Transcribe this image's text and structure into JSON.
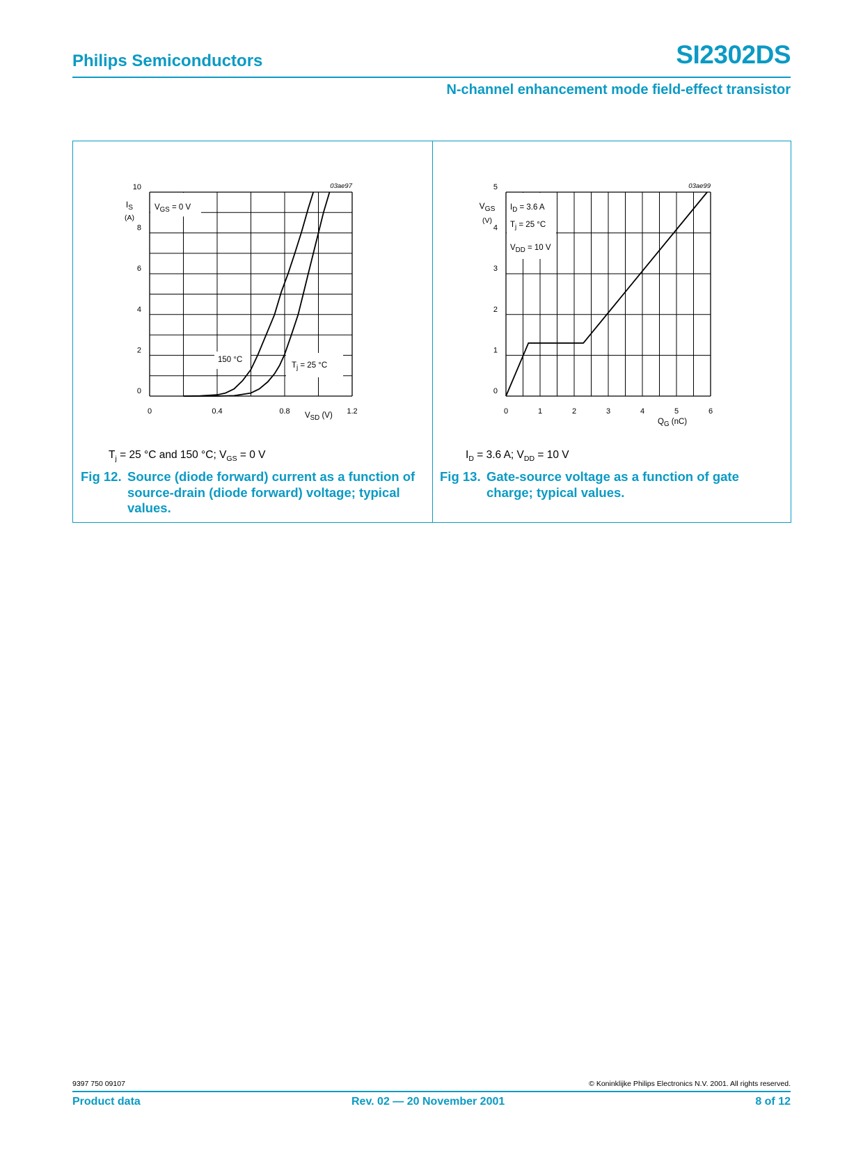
{
  "header": {
    "company": "Philips Semiconductors",
    "part_number": "SI2302DS",
    "subtitle": "N-channel enhancement mode field-effect transistor"
  },
  "colors": {
    "brand": "#0b9ac4",
    "plot": "#000000"
  },
  "figures": [
    {
      "conditions": {
        "a_base": "T",
        "a_sub": "j",
        "a_rest": " = 25 °C and 150 °C; V",
        "b_sub": "GS",
        "b_rest": " = 0 V"
      },
      "caption_num": "Fig 12.",
      "caption_text": "Source (diode forward) current as a function of source-drain (diode forward) voltage; typical values."
    },
    {
      "conditions": {
        "a_base": "I",
        "a_sub": "D",
        "a_rest": " = 3.6 A; V",
        "b_sub": "DD",
        "b_rest": " = 10 V"
      },
      "caption_num": "Fig 13.",
      "caption_text": "Gate-source voltage as a function of gate charge; typical values."
    }
  ],
  "chart_data": [
    {
      "type": "line",
      "code": "03ae97",
      "xlim": [
        0,
        1.2
      ],
      "ylim": [
        0,
        10
      ],
      "grid": true,
      "x_ticks": [
        "0",
        "0.4",
        "0.8",
        "1.2"
      ],
      "y_ticks": [
        "0",
        "2",
        "4",
        "6",
        "8",
        "10"
      ],
      "xlabel": {
        "base": "V",
        "sub": "SD",
        "rest": " (V)"
      },
      "ylabel": {
        "base": "I",
        "sub": "S",
        "unit": "(A)"
      },
      "annotations": [
        {
          "base": "V",
          "sub": "GS",
          "rest": " = 0 V"
        },
        {
          "base": "150 °C",
          "sub": "",
          "rest": ""
        },
        {
          "base": "T",
          "sub": "j",
          "rest": " = 25 °C"
        }
      ],
      "series": [
        {
          "name": "150 °C",
          "points": [
            [
              0.2,
              0
            ],
            [
              0.3,
              0.01
            ],
            [
              0.4,
              0.06
            ],
            [
              0.45,
              0.15
            ],
            [
              0.5,
              0.35
            ],
            [
              0.55,
              0.75
            ],
            [
              0.6,
              1.3
            ],
            [
              0.64,
              2
            ],
            [
              0.7,
              3.2
            ],
            [
              0.74,
              4
            ],
            [
              0.78,
              5.1
            ],
            [
              0.82,
              6
            ],
            [
              0.86,
              7
            ],
            [
              0.9,
              8.05
            ],
            [
              0.94,
              9.2
            ],
            [
              0.97,
              10
            ]
          ]
        },
        {
          "name": "Tj = 25 °C",
          "points": [
            [
              0.2,
              0
            ],
            [
              0.4,
              0
            ],
            [
              0.5,
              0.02
            ],
            [
              0.6,
              0.15
            ],
            [
              0.65,
              0.35
            ],
            [
              0.7,
              0.7
            ],
            [
              0.74,
              1.1
            ],
            [
              0.77,
              1.5
            ],
            [
              0.8,
              2.05
            ],
            [
              0.84,
              3
            ],
            [
              0.88,
              4
            ],
            [
              0.91,
              5
            ],
            [
              0.94,
              6
            ],
            [
              0.97,
              7
            ],
            [
              1.0,
              8
            ],
            [
              1.03,
              9
            ],
            [
              1.066,
              10
            ]
          ]
        }
      ]
    },
    {
      "type": "line",
      "code": "03ae99",
      "xlim": [
        0,
        6
      ],
      "ylim": [
        0,
        5
      ],
      "grid": true,
      "x_ticks": [
        "0",
        "1",
        "2",
        "3",
        "4",
        "5",
        "6"
      ],
      "y_ticks": [
        "0",
        "1",
        "2",
        "3",
        "4",
        "5"
      ],
      "xlabel": {
        "base": "Q",
        "sub": "G",
        "rest": " (nC)"
      },
      "ylabel": {
        "base": "V",
        "sub": "GS",
        "unit": "(V)"
      },
      "annotations": [
        {
          "base": "I",
          "sub": "D",
          "rest": " = 3.6 A"
        },
        {
          "base": "T",
          "sub": "j",
          "rest": " = 25 °C"
        },
        {
          "base": "V",
          "sub": "DD",
          "rest": " = 10 V"
        }
      ],
      "series": [
        {
          "points": [
            [
              0,
              0
            ],
            [
              0.66,
              1.3
            ],
            [
              2.27,
              1.3
            ],
            [
              5.9,
              5
            ]
          ]
        }
      ]
    }
  ],
  "footer": {
    "doc_number": "9397 750 09107",
    "copyright": "© Koninklijke Philips Electronics N.V. 2001. All rights reserved.",
    "doc_type": "Product data",
    "revision": "Rev. 02 — 20 November 2001",
    "page": "8 of 12"
  }
}
